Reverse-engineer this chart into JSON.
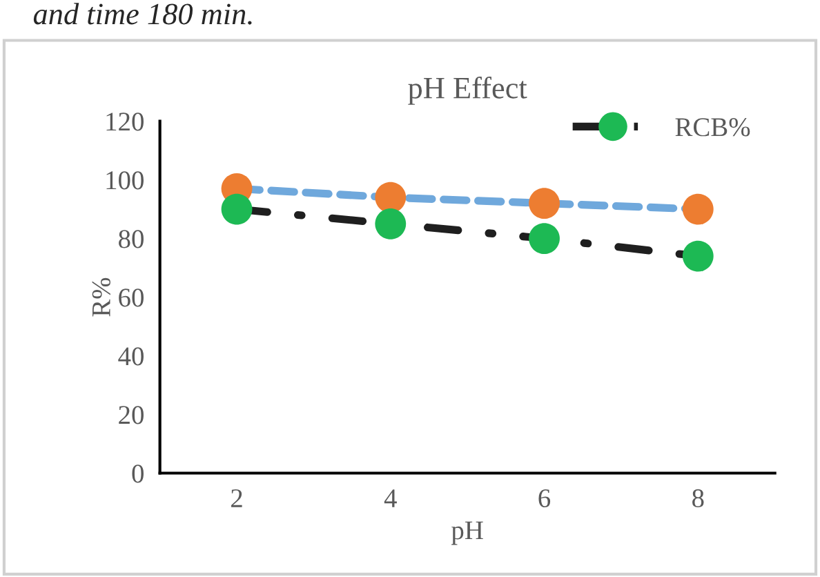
{
  "chart_data": {
    "type": "line",
    "title": "pH Effect",
    "xlabel": "pH",
    "ylabel": "R%",
    "annotations": [
      "and time 180 min."
    ],
    "categories": [
      "2",
      "4",
      "6",
      "8"
    ],
    "series": [
      {
        "color": "#6fa8dc",
        "colors": [
          "#ed7d31",
          "#ed7d31",
          "#ed7d31",
          "#ed7d31"
        ],
        "values": [
          97,
          94,
          92,
          90
        ],
        "line_style": "dashed"
      },
      {
        "name": "RCB%",
        "color": "#1f1f1f",
        "colors": [
          "#1db954",
          "#1db954",
          "#1db954",
          "#1db954"
        ],
        "values": [
          90,
          85,
          80,
          74
        ],
        "line_style": "dashdot"
      }
    ],
    "ylim": [
      0,
      120
    ],
    "yticks": [
      0,
      20,
      40,
      60,
      80,
      100,
      120
    ],
    "marker": "circle",
    "grid": false,
    "legend": "top right"
  }
}
